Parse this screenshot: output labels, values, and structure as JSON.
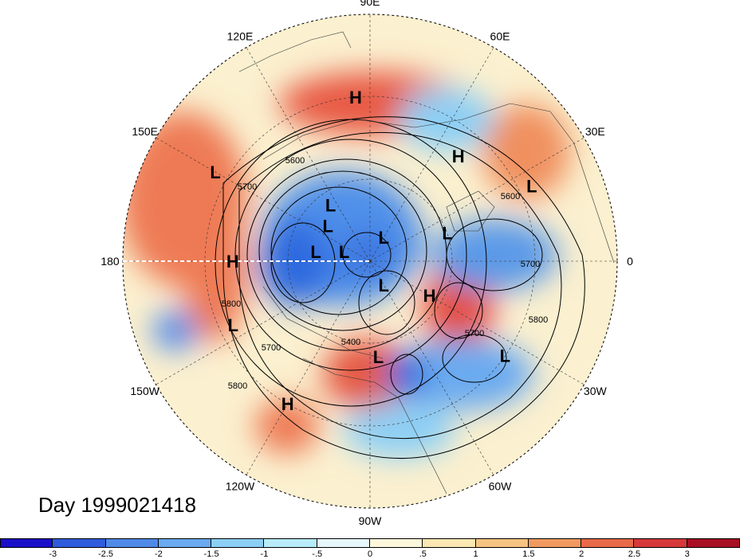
{
  "date_label": "Day 1999021418",
  "longitudes": [
    {
      "text": "90E",
      "deg": 90
    },
    {
      "text": "60E",
      "deg": 60
    },
    {
      "text": "30E",
      "deg": 30
    },
    {
      "text": "0",
      "deg": 0
    },
    {
      "text": "30W",
      "deg": -30
    },
    {
      "text": "60W",
      "deg": -60
    },
    {
      "text": "90W",
      "deg": -90
    },
    {
      "text": "120W",
      "deg": -120
    },
    {
      "text": "150W",
      "deg": -150
    },
    {
      "text": "180",
      "deg": 180
    },
    {
      "text": "150E",
      "deg": 150
    },
    {
      "text": "120E",
      "deg": 120
    }
  ],
  "pressure_centers": [
    {
      "type": "H",
      "lon": 95,
      "lat": 30
    },
    {
      "type": "H",
      "lon": 50,
      "lat": 40
    },
    {
      "type": "L",
      "lon": 25,
      "lat": 25
    },
    {
      "type": "L",
      "lon": 20,
      "lat": 60
    },
    {
      "type": "L",
      "lon": 125,
      "lat": 65
    },
    {
      "type": "L",
      "lon": 140,
      "lat": 70
    },
    {
      "type": "L",
      "lon": 150,
      "lat": 25
    },
    {
      "type": "H",
      "lon": 180,
      "lat": 40
    },
    {
      "type": "L",
      "lon": 170,
      "lat": 70
    },
    {
      "type": "L",
      "lon": 160,
      "lat": 80
    },
    {
      "type": "L",
      "lon": 60,
      "lat": 80
    },
    {
      "type": "H",
      "lon": -30,
      "lat": 65
    },
    {
      "type": "L",
      "lon": -60,
      "lat": 80
    },
    {
      "type": "L",
      "lon": -85,
      "lat": 55
    },
    {
      "type": "L",
      "lon": -155,
      "lat": 35
    },
    {
      "type": "H",
      "lon": -120,
      "lat": 30
    },
    {
      "type": "L",
      "lon": -35,
      "lat": 30
    }
  ],
  "contour_labels": [
    "5700",
    "5600",
    "5800",
    "5600",
    "5700",
    "5800",
    "5800",
    "5700",
    "5700",
    "5400"
  ],
  "colorbar": {
    "min": -3.5,
    "max": 3.5,
    "step": 0.5,
    "colors": [
      "#1a0fc8",
      "#2f5cdc",
      "#4f8ae8",
      "#6aaaf0",
      "#8ccff5",
      "#b8ecfa",
      "#e6f8fc",
      "#fdf7dc",
      "#fae7b2",
      "#f6c482",
      "#f09a62",
      "#e86a48",
      "#d6383a",
      "#a80f24"
    ],
    "ticks": [
      "-3",
      "-2.5",
      "-2",
      "-1.5",
      "-1",
      "-.5",
      "0",
      ".5",
      "1",
      "1.5",
      "2",
      "2.5",
      "3"
    ]
  }
}
